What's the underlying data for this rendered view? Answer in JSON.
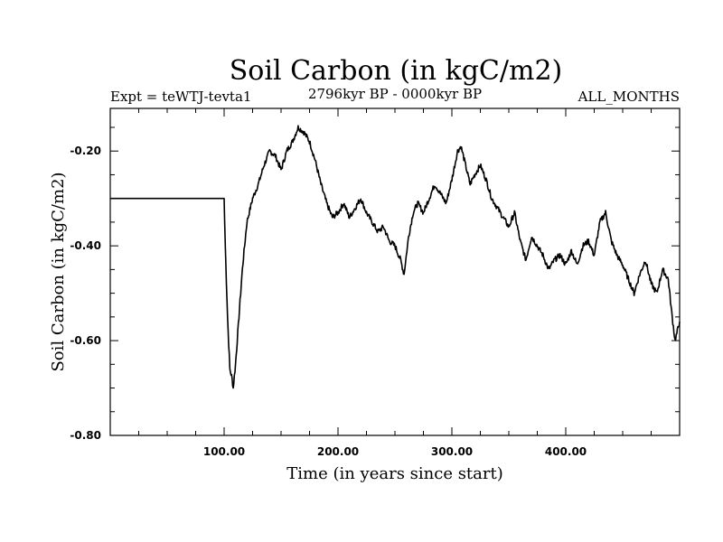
{
  "chart_data": {
    "type": "line",
    "title": "Soil Carbon (in kgC/m2)",
    "subtitle_left": "Expt = teWTJ-tevta1",
    "subtitle_center": "2796kyr BP - 0000kyr BP",
    "subtitle_right": "ALL_MONTHS",
    "xlabel": "Time (in years since start)",
    "ylabel": "Soil Carbon (in kgC/m2)",
    "xlim": [
      0,
      500
    ],
    "ylim": [
      -0.8,
      -0.11
    ],
    "x_ticks": [
      100,
      200,
      300,
      400
    ],
    "x_tick_labels": [
      "100.00",
      "200.00",
      "300.00",
      "400.00"
    ],
    "y_ticks": [
      -0.8,
      -0.6,
      -0.4,
      -0.2
    ],
    "y_tick_labels": [
      "-0.80",
      "-0.60",
      "-0.40",
      "-0.20"
    ],
    "grid": false,
    "series": [
      {
        "name": "Soil Carbon",
        "x": [
          0,
          99,
          100,
          101,
          103,
          105,
          107,
          108,
          110,
          113,
          116,
          120,
          125,
          130,
          135,
          140,
          145,
          150,
          155,
          160,
          165,
          170,
          175,
          180,
          185,
          190,
          195,
          200,
          205,
          210,
          215,
          220,
          225,
          230,
          235,
          240,
          245,
          250,
          255,
          258,
          262,
          266,
          270,
          275,
          280,
          285,
          290,
          295,
          300,
          305,
          308,
          312,
          316,
          320,
          325,
          330,
          335,
          340,
          345,
          350,
          355,
          360,
          365,
          370,
          375,
          380,
          385,
          390,
          395,
          400,
          405,
          410,
          415,
          420,
          425,
          430,
          435,
          440,
          445,
          450,
          455,
          460,
          465,
          470,
          475,
          480,
          485,
          490,
          493,
          496,
          500
        ],
        "y": [
          -0.3,
          -0.3,
          -0.3,
          -0.4,
          -0.55,
          -0.66,
          -0.68,
          -0.7,
          -0.65,
          -0.55,
          -0.45,
          -0.35,
          -0.3,
          -0.27,
          -0.23,
          -0.2,
          -0.21,
          -0.24,
          -0.2,
          -0.18,
          -0.15,
          -0.16,
          -0.18,
          -0.22,
          -0.27,
          -0.31,
          -0.34,
          -0.33,
          -0.31,
          -0.34,
          -0.32,
          -0.3,
          -0.33,
          -0.35,
          -0.37,
          -0.36,
          -0.39,
          -0.4,
          -0.43,
          -0.46,
          -0.38,
          -0.33,
          -0.31,
          -0.33,
          -0.3,
          -0.27,
          -0.29,
          -0.31,
          -0.26,
          -0.2,
          -0.19,
          -0.23,
          -0.27,
          -0.25,
          -0.23,
          -0.26,
          -0.3,
          -0.32,
          -0.34,
          -0.36,
          -0.33,
          -0.39,
          -0.43,
          -0.38,
          -0.4,
          -0.42,
          -0.45,
          -0.43,
          -0.42,
          -0.44,
          -0.41,
          -0.44,
          -0.4,
          -0.39,
          -0.42,
          -0.35,
          -0.33,
          -0.39,
          -0.42,
          -0.44,
          -0.47,
          -0.5,
          -0.46,
          -0.43,
          -0.48,
          -0.5,
          -0.45,
          -0.47,
          -0.54,
          -0.6,
          -0.56
        ]
      }
    ]
  }
}
